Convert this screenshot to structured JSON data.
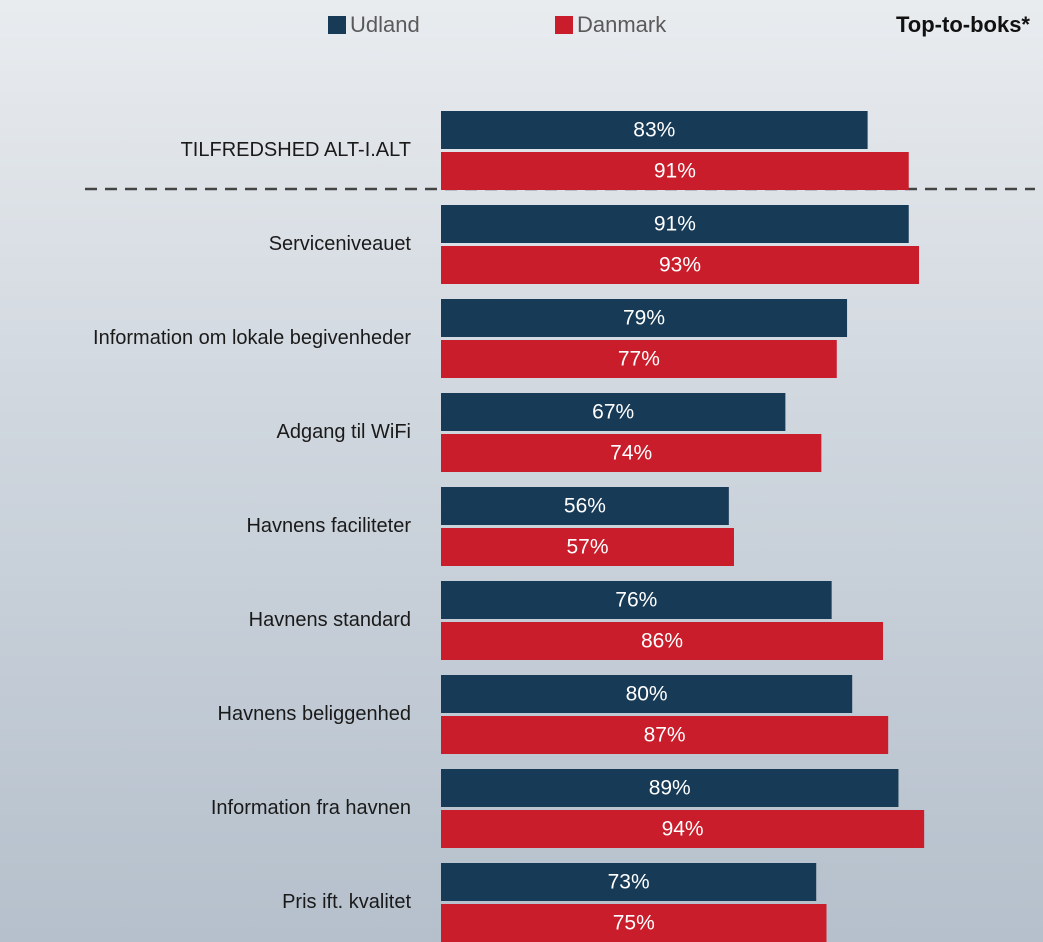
{
  "chart_data": {
    "type": "bar",
    "orientation": "horizontal",
    "title": "Top-to-boks*",
    "categories": [
      "TILFREDSHED ALT-I.ALT",
      "Serviceniveauet",
      "Information om lokale begivenheder",
      "Adgang til WiFi",
      "Havnens faciliteter",
      "Havnens standard",
      "Havnens beliggenhed",
      "Information fra havnen",
      "Pris ift. kvalitet"
    ],
    "series": [
      {
        "name": "Udland",
        "color": "#173a56",
        "values": [
          83,
          91,
          79,
          67,
          56,
          76,
          80,
          89,
          73
        ],
        "value_labels": [
          "83%",
          "91%",
          "79%",
          "67%",
          "56%",
          "76%",
          "80%",
          "89%",
          "73%"
        ]
      },
      {
        "name": "Danmark",
        "color": "#c91d2b",
        "values": [
          91,
          93,
          77,
          74,
          57,
          86,
          87,
          94,
          75
        ],
        "value_labels": [
          "91%",
          "93%",
          "77%",
          "74%",
          "57%",
          "86%",
          "87%",
          "94%",
          "75%"
        ]
      }
    ],
    "xlim": [
      0,
      100
    ],
    "legend": "top"
  }
}
